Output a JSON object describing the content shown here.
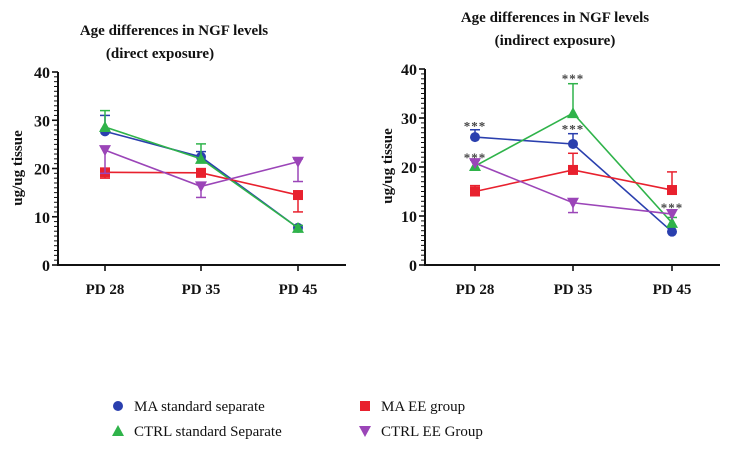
{
  "chart_data": [
    {
      "type": "line",
      "title": "Age differences in NGF levels",
      "subtitle": "(direct exposure)",
      "xlabel": "",
      "ylabel": "ug/ug tissue",
      "ylim": [
        0,
        40
      ],
      "yticks": [
        "0",
        "10",
        "20",
        "30",
        "40"
      ],
      "ytick_values": [
        0,
        10,
        20,
        30,
        40
      ],
      "categories": [
        "PD 28",
        "PD 35",
        "PD 45"
      ],
      "grid": false,
      "series": [
        {
          "name": "MA standard separate",
          "color": "#2a3fae",
          "marker": "circle",
          "values": [
            27.7,
            22.4,
            7.7
          ],
          "err_upper": [
            31.0,
            23.5,
            8.0
          ],
          "err_lower": [
            27.7,
            22.4,
            7.4
          ]
        },
        {
          "name": "CTRL standard Separate",
          "color": "#2fb34a",
          "marker": "triangle-up",
          "values": [
            28.6,
            22.0,
            7.7
          ],
          "err_upper": [
            32.0,
            25.1,
            8.2
          ],
          "err_lower": [
            28.6,
            22.0,
            7.7
          ]
        },
        {
          "name": "MA EE group",
          "color": "#e8212e",
          "marker": "square",
          "values": [
            19.2,
            19.1,
            14.5
          ],
          "err_upper": [
            19.2,
            19.1,
            14.5
          ],
          "err_lower": [
            18.0,
            19.1,
            11.0
          ]
        },
        {
          "name": "CTRL EE Group",
          "color": "#9b45b8",
          "marker": "triangle-down",
          "values": [
            23.8,
            16.3,
            21.4
          ],
          "err_upper": [
            23.8,
            16.3,
            22.0
          ],
          "err_lower": [
            19.0,
            14.0,
            17.3
          ]
        }
      ],
      "annotations": []
    },
    {
      "type": "line",
      "title": "Age differences in NGF levels",
      "subtitle": "(indirect exposure)",
      "xlabel": "",
      "ylabel": "ug/ug tissue",
      "ylim": [
        0,
        40
      ],
      "yticks": [
        "0",
        "10",
        "20",
        "30",
        "40"
      ],
      "ytick_values": [
        0,
        10,
        20,
        30,
        40
      ],
      "categories": [
        "PD 28",
        "PD 35",
        "PD 45"
      ],
      "grid": false,
      "series": [
        {
          "name": "MA standard separate",
          "color": "#2a3fae",
          "marker": "circle",
          "values": [
            26.1,
            24.7,
            6.8
          ],
          "err_upper": [
            27.6,
            26.8,
            6.8
          ],
          "err_lower": [
            26.1,
            24.7,
            6.8
          ]
        },
        {
          "name": "CTRL standard Separate",
          "color": "#2fb34a",
          "marker": "triangle-up",
          "values": [
            20.2,
            31.0,
            8.6
          ],
          "err_upper": [
            20.2,
            37.0,
            9.7
          ],
          "err_lower": [
            19.4,
            31.0,
            8.6
          ]
        },
        {
          "name": "MA EE group",
          "color": "#e8212e",
          "marker": "square",
          "values": [
            15.0,
            19.4,
            15.3
          ],
          "err_upper": [
            16.2,
            22.8,
            19.0
          ],
          "err_lower": [
            15.0,
            19.4,
            15.3
          ]
        },
        {
          "name": "CTRL EE Group",
          "color": "#9b45b8",
          "marker": "triangle-down",
          "values": [
            20.8,
            12.7,
            10.4
          ],
          "err_upper": [
            21.4,
            12.7,
            10.4
          ],
          "err_lower": [
            20.8,
            10.7,
            10.4
          ]
        }
      ],
      "annotations": [
        {
          "text": "***",
          "category": "PD 28",
          "value": 28.3
        },
        {
          "text": "***",
          "category": "PD 28",
          "value": 21.8
        },
        {
          "text": "***",
          "category": "PD 35",
          "value": 38.0
        },
        {
          "text": "***",
          "category": "PD 35",
          "value": 27.7
        },
        {
          "text": "***",
          "category": "PD 45",
          "value": 11.6
        }
      ]
    }
  ],
  "legend": {
    "placement": "bottom",
    "items": [
      {
        "label": "MA standard separate",
        "color": "#2a3fae",
        "marker": "circle"
      },
      {
        "label": "MA EE group",
        "color": "#e8212e",
        "marker": "square"
      },
      {
        "label": "CTRL standard Separate",
        "color": "#2fb34a",
        "marker": "triangle-up"
      },
      {
        "label": "CTRL EE Group",
        "color": "#9b45b8",
        "marker": "triangle-down"
      }
    ]
  }
}
